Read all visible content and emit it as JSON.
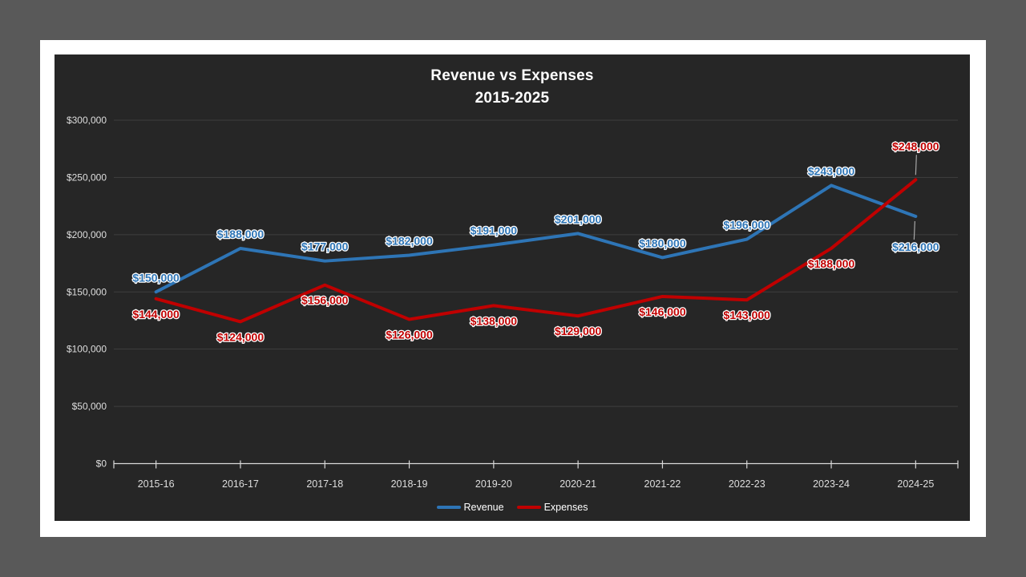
{
  "theme": {
    "canvas_gray": "#595959",
    "slide_white": "#FFFFFF",
    "chart_bg": "#262626",
    "gridline": "#3F3F3F",
    "axis_line": "#D9D9D9",
    "axis_text": "#DEDEDE",
    "title_text": "#FFFFFF",
    "legend_text": "#FFFFFF",
    "leader_line": "#A6A6A6",
    "revenue_color": "#2E75B6",
    "expenses_color": "#C00000"
  },
  "chart_data": {
    "type": "line",
    "title": "Revenue vs Expenses",
    "subtitle": "2015-2025",
    "categories": [
      "2015-16",
      "2016-17",
      "2017-18",
      "2018-19",
      "2019-20",
      "2020-21",
      "2021-22",
      "2022-23",
      "2023-24",
      "2024-25"
    ],
    "series": [
      {
        "name": "Revenue",
        "color": "#2E75B6",
        "values": [
          150000,
          188000,
          177000,
          182000,
          191000,
          201000,
          180000,
          196000,
          243000,
          216000
        ],
        "labels": [
          "$150,000",
          "$188,000",
          "$177,000",
          "$182,000",
          "$191,000",
          "$201,000",
          "$180,000",
          "$196,000",
          "$243,000",
          "$216,000"
        ],
        "label_side": "above",
        "overrides": {
          "9": {
            "side": "below",
            "leader": true
          }
        }
      },
      {
        "name": "Expenses",
        "color": "#C00000",
        "values": [
          144000,
          124000,
          156000,
          126000,
          138000,
          129000,
          146000,
          143000,
          188000,
          248000
        ],
        "labels": [
          "$144,000",
          "$124,000",
          "$156,000",
          "$126,000",
          "$138,000",
          "$129,000",
          "$146,000",
          "$143,000",
          "$188,000",
          "$248,000"
        ],
        "label_side": "below",
        "overrides": {
          "9": {
            "side": "above",
            "leader": true
          }
        }
      }
    ],
    "y_axis": {
      "min": 0,
      "max": 300000,
      "step": 50000,
      "tick_labels": [
        "$0",
        "$50,000",
        "$100,000",
        "$150,000",
        "$200,000",
        "$250,000",
        "$300,000"
      ]
    },
    "x_axis": {
      "tick_marks": "category-centers"
    },
    "grid": true,
    "legend_position": "bottom"
  }
}
